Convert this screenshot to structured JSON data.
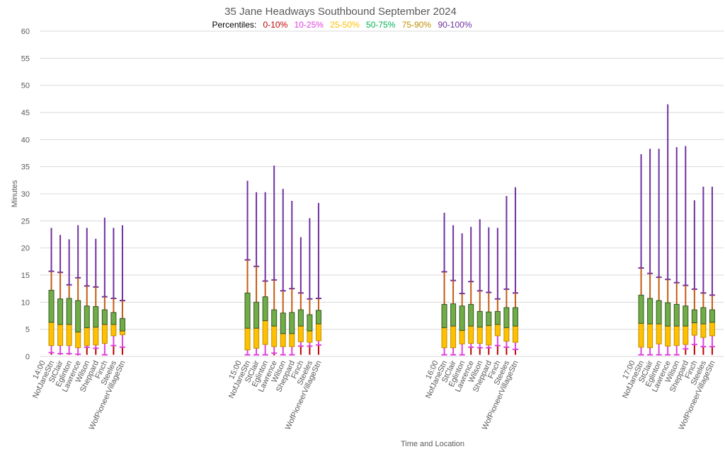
{
  "chart_data": {
    "type": "box",
    "title": "35 Jane Headways Southbound September 2024",
    "legend": {
      "prefix": "Percentiles:",
      "entries": [
        {
          "label": "0-10%",
          "color": "#c00000"
        },
        {
          "label": "10-25%",
          "color": "#e040e0"
        },
        {
          "label": "25-50%",
          "color": "#ffc000"
        },
        {
          "label": "50-75%",
          "color": "#00b050"
        },
        {
          "label": "75-90%",
          "color": "#bf9000"
        },
        {
          "label": "90-100%",
          "color": "#7030a0"
        }
      ],
      "placement": "top-center"
    },
    "xlabel": "Time and Location",
    "ylabel": "Minutes",
    "ylim": [
      0,
      60
    ],
    "yticks": [
      0,
      5,
      10,
      15,
      20,
      25,
      30,
      35,
      40,
      45,
      50,
      55,
      60
    ],
    "grid": true,
    "series_colors": {
      "p0_10": "#c00000",
      "p10_25": "#e040e0",
      "p25_50_fill": "#ffc000",
      "p50_75_fill": "#70ad47",
      "box_border": "#375623",
      "p75_90": "#c55a11",
      "p90_100": "#7030a0"
    },
    "value_fields": [
      "min",
      "p10",
      "p25",
      "p50",
      "p75",
      "p90",
      "max"
    ],
    "groups": [
      {
        "time": "14:00",
        "stops": [
          {
            "name": "NofJaneStn",
            "values": [
              0.3,
              0.7,
              2.0,
              6.3,
              12.2,
              15.7,
              23.7
            ]
          },
          {
            "name": "StClair",
            "values": [
              0.3,
              0.5,
              2.0,
              5.9,
              10.6,
              15.5,
              22.4
            ]
          },
          {
            "name": "Eglinton",
            "values": [
              0.3,
              0.5,
              2.0,
              5.9,
              10.7,
              13.2,
              21.6
            ]
          },
          {
            "name": "Lawrence",
            "values": [
              0.2,
              0.4,
              1.6,
              4.5,
              10.3,
              14.5,
              24.2
            ]
          },
          {
            "name": "Wilson",
            "values": [
              0.3,
              1.7,
              2.0,
              5.3,
              9.3,
              13.0,
              23.7
            ]
          },
          {
            "name": "Sheppard",
            "values": [
              0.3,
              1.5,
              2.1,
              5.4,
              9.2,
              12.8,
              21.7
            ]
          },
          {
            "name": "Finch",
            "values": [
              0.3,
              0.3,
              2.4,
              5.9,
              8.6,
              11.0,
              25.6
            ]
          },
          {
            "name": "Steeles",
            "values": [
              0.3,
              2.0,
              3.8,
              5.9,
              8.1,
              10.7,
              23.7
            ]
          },
          {
            "name": "WofPioneerVillageStn",
            "values": [
              0.3,
              1.7,
              4.0,
              4.7,
              7.0,
              10.3,
              24.2
            ]
          }
        ]
      },
      {
        "time": "15:00",
        "stops": [
          {
            "name": "NofJaneStn",
            "values": [
              0.3,
              0.3,
              1.2,
              5.2,
              11.7,
              17.8,
              32.4
            ]
          },
          {
            "name": "StClair",
            "values": [
              0.3,
              0.3,
              1.5,
              5.2,
              10.0,
              16.6,
              30.3
            ]
          },
          {
            "name": "Eglinton",
            "values": [
              0.3,
              0.3,
              2.2,
              6.6,
              11.0,
              13.9,
              30.3
            ]
          },
          {
            "name": "Lawrence",
            "values": [
              0.2,
              0.6,
              1.8,
              5.6,
              8.6,
              14.1,
              35.2
            ]
          },
          {
            "name": "Wilson",
            "values": [
              0.3,
              0.3,
              1.8,
              4.2,
              8.0,
              12.1,
              30.9
            ]
          },
          {
            "name": "Sheppard",
            "values": [
              0.3,
              0.3,
              1.8,
              4.2,
              8.1,
              12.5,
              28.7
            ]
          },
          {
            "name": "Finch",
            "values": [
              0.3,
              1.9,
              2.7,
              5.6,
              8.6,
              11.7,
              22.0
            ]
          },
          {
            "name": "Steeles",
            "values": [
              0.3,
              1.9,
              2.6,
              4.7,
              7.7,
              10.6,
              25.5
            ]
          },
          {
            "name": "WofPioneerVillageStn",
            "values": [
              0.3,
              2.1,
              2.9,
              6.0,
              8.5,
              10.7,
              28.3
            ]
          }
        ]
      },
      {
        "time": "16:00",
        "stops": [
          {
            "name": "NofJaneStn",
            "values": [
              0.3,
              0.3,
              1.6,
              5.3,
              9.6,
              15.6,
              26.5
            ]
          },
          {
            "name": "StClair",
            "values": [
              0.3,
              0.3,
              1.6,
              5.6,
              9.7,
              14.0,
              24.2
            ]
          },
          {
            "name": "Eglinton",
            "values": [
              0.3,
              0.3,
              2.3,
              4.8,
              9.3,
              11.6,
              22.7
            ]
          },
          {
            "name": "Lawrence",
            "values": [
              0.3,
              1.7,
              2.4,
              5.6,
              9.6,
              13.8,
              23.9
            ]
          },
          {
            "name": "Wilson",
            "values": [
              0.3,
              1.6,
              2.4,
              5.4,
              8.3,
              12.1,
              25.3
            ]
          },
          {
            "name": "Sheppard",
            "values": [
              0.3,
              1.6,
              2.1,
              5.7,
              8.2,
              11.8,
              23.8
            ]
          },
          {
            "name": "Finch",
            "values": [
              0.3,
              2.0,
              3.8,
              5.9,
              8.3,
              10.6,
              23.7
            ]
          },
          {
            "name": "Steeles",
            "values": [
              0.3,
              1.7,
              2.8,
              5.3,
              9.0,
              12.4,
              29.6
            ]
          },
          {
            "name": "WofPioneerVillageStn",
            "values": [
              0.3,
              1.3,
              2.6,
              5.6,
              9.0,
              11.7,
              31.2
            ]
          }
        ]
      },
      {
        "time": "17:00",
        "stops": [
          {
            "name": "NofJaneStn",
            "values": [
              0.3,
              0.3,
              1.7,
              6.1,
              11.3,
              16.3,
              37.3
            ]
          },
          {
            "name": "StClair",
            "values": [
              0.3,
              0.3,
              1.6,
              6.0,
              10.7,
              15.3,
              38.3
            ]
          },
          {
            "name": "Eglinton",
            "values": [
              0.3,
              0.3,
              2.3,
              6.0,
              10.3,
              14.6,
              38.3
            ]
          },
          {
            "name": "Lawrence",
            "values": [
              0.3,
              0.3,
              1.9,
              5.6,
              9.9,
              14.2,
              46.5
            ]
          },
          {
            "name": "Wilson",
            "values": [
              0.3,
              0.3,
              2.0,
              5.6,
              9.6,
              13.6,
              38.6
            ]
          },
          {
            "name": "Sheppard",
            "values": [
              0.3,
              1.4,
              2.2,
              5.6,
              9.3,
              13.1,
              38.8
            ]
          },
          {
            "name": "Finch",
            "values": [
              0.3,
              2.2,
              3.9,
              6.2,
              8.6,
              12.4,
              28.8
            ]
          },
          {
            "name": "Steeles",
            "values": [
              0.3,
              1.8,
              3.5,
              6.0,
              9.0,
              11.7,
              31.3
            ]
          },
          {
            "name": "WofPioneerVillageStn",
            "values": [
              0.3,
              1.8,
              3.8,
              6.3,
              8.6,
              11.3,
              31.3
            ]
          }
        ]
      }
    ]
  }
}
